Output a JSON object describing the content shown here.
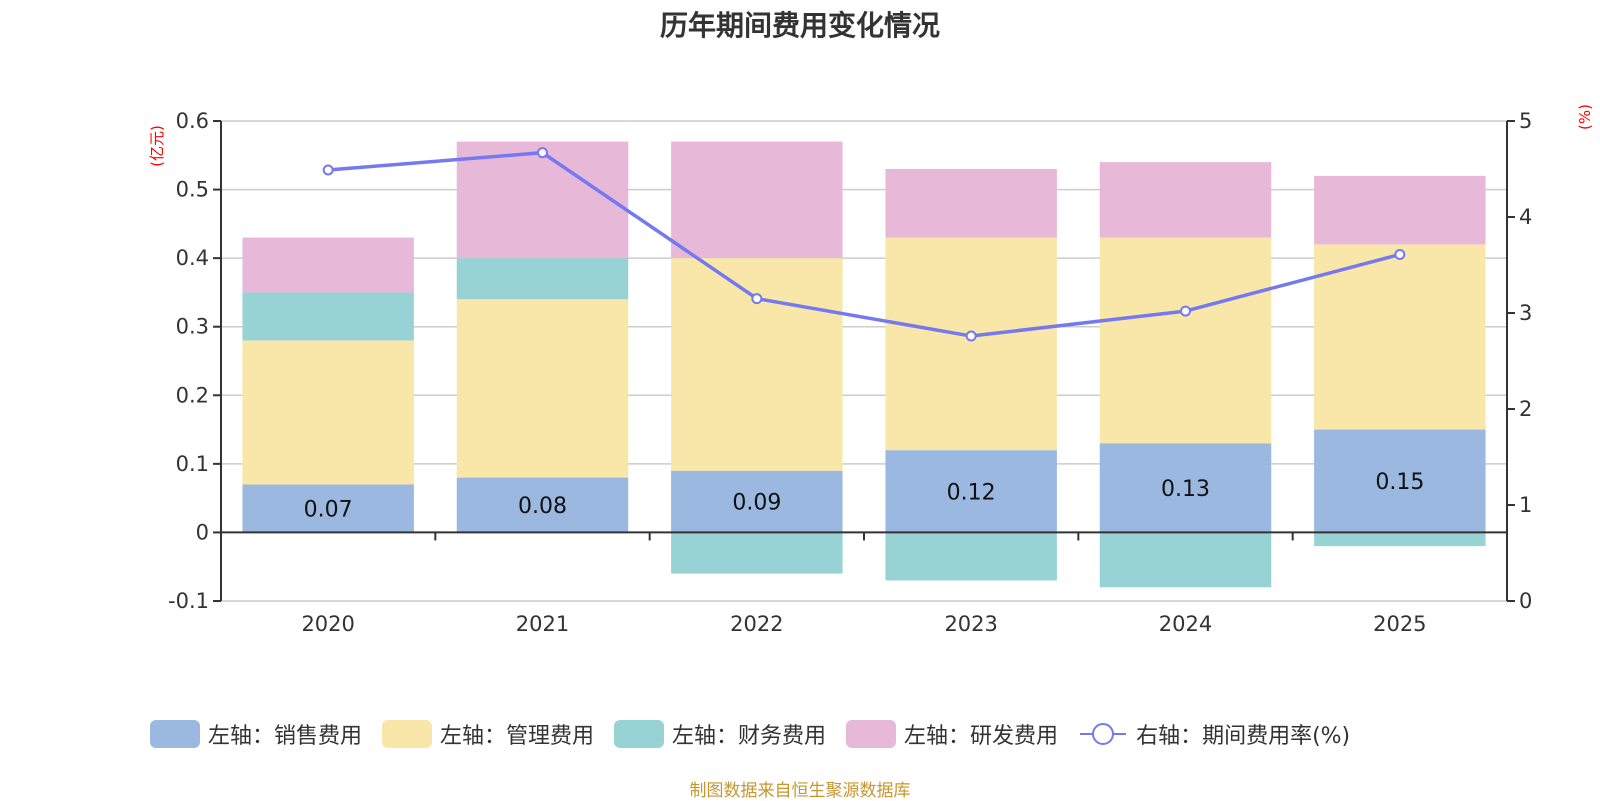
{
  "chart_data": {
    "type": "bar",
    "title": "历年期间费用变化情况",
    "categories": [
      "2020",
      "2021",
      "2022",
      "2023",
      "2024",
      "2025"
    ],
    "left_axis": {
      "unit_label": "(亿元)",
      "ylim": [
        -0.1,
        0.6
      ],
      "ticks": [
        "0.6",
        "0.5",
        "0.4",
        "0.3",
        "0.2",
        "0.1",
        "0",
        "-0.1"
      ],
      "tick_values": [
        0.6,
        0.5,
        0.4,
        0.3,
        0.2,
        0.1,
        0,
        -0.1
      ]
    },
    "right_axis": {
      "unit_label": "(%)",
      "ylim": [
        0,
        5
      ],
      "ticks": [
        "5",
        "4",
        "3",
        "2",
        "1",
        "0"
      ],
      "tick_values": [
        5,
        4,
        3,
        2,
        1,
        0
      ]
    },
    "grid": true,
    "stacked": true,
    "series": [
      {
        "name": "左轴：销售费用",
        "axis": "left",
        "type": "bar",
        "color": "#9bb8e1",
        "values": [
          0.07,
          0.08,
          0.09,
          0.12,
          0.13,
          0.15
        ],
        "labels": [
          "0.07",
          "0.08",
          "0.09",
          "0.12",
          "0.13",
          "0.15"
        ]
      },
      {
        "name": "左轴：管理费用",
        "axis": "left",
        "type": "bar",
        "color": "#f8e7a8",
        "values": [
          0.21,
          0.26,
          0.31,
          0.31,
          0.3,
          0.27
        ]
      },
      {
        "name": "左轴：财务费用",
        "axis": "left",
        "type": "bar",
        "color": "#97d3d4",
        "values": [
          0.07,
          0.06,
          -0.06,
          -0.07,
          -0.08,
          -0.02
        ]
      },
      {
        "name": "左轴：研发费用",
        "axis": "left",
        "type": "bar",
        "color": "#e7b8d8",
        "values": [
          0.08,
          0.17,
          0.17,
          0.1,
          0.11,
          0.1
        ]
      },
      {
        "name": "右轴：期间费用率(%)",
        "axis": "right",
        "type": "line",
        "color": "#7479ef",
        "values": [
          4.49,
          4.67,
          3.15,
          2.76,
          3.02,
          3.61
        ]
      }
    ],
    "legend_position": "bottom"
  },
  "footer": "制图数据来自恒生聚源数据库"
}
